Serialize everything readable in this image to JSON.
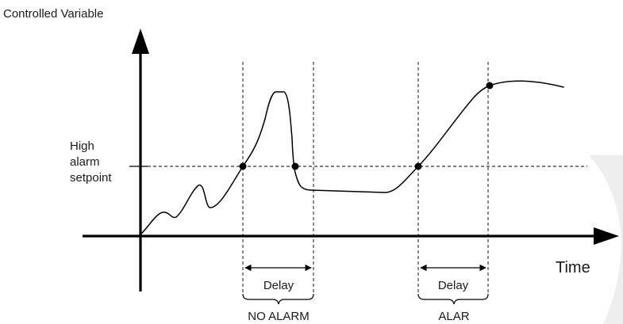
{
  "labels": {
    "y_axis": "Controlled Variable",
    "x_axis": "Time",
    "setpoint_line1": "High",
    "setpoint_line2": "alarm",
    "setpoint_line3": "setpoint",
    "delay_left": "Delay",
    "delay_right": "Delay",
    "outcome_left": "NO ALARM",
    "outcome_right": "ALAR"
  },
  "colors": {
    "ink": "#000000",
    "text": "#1a1a1a",
    "background": "#ffffff",
    "watermark": "#eeeeee"
  }
}
